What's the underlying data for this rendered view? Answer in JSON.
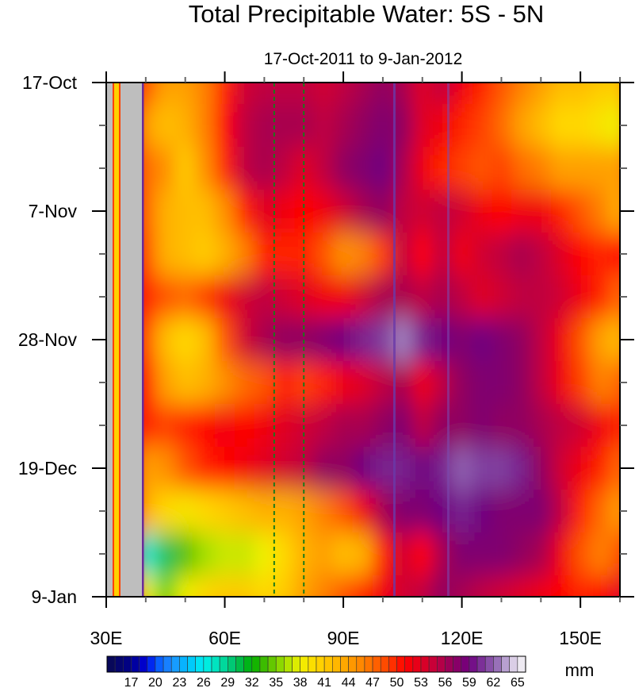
{
  "chart_data": {
    "type": "heatmap",
    "title": "Total Precipitable Water: 5S - 5N",
    "subtitle": "17-Oct-2011 to 9-Jan-2012",
    "xlabel": "",
    "ylabel": "",
    "units_label": "mm",
    "xlim": [
      30,
      160
    ],
    "ylim_days": [
      0,
      84
    ],
    "x_ticks": [
      {
        "value": 30,
        "label": "30E"
      },
      {
        "value": 60,
        "label": "60E"
      },
      {
        "value": 90,
        "label": "90E"
      },
      {
        "value": 120,
        "label": "120E"
      },
      {
        "value": 150,
        "label": "150E"
      }
    ],
    "y_ticks": [
      {
        "day": 0,
        "label": "17-Oct"
      },
      {
        "day": 21,
        "label": "7-Nov"
      },
      {
        "day": 42,
        "label": "28-Nov"
      },
      {
        "day": 63,
        "label": "19-Dec"
      },
      {
        "day": 84,
        "label": "9-Jan"
      }
    ],
    "lon": [
      40,
      45,
      50,
      55,
      60,
      65,
      70,
      75,
      80,
      85,
      90,
      95,
      100,
      105,
      110,
      115,
      120,
      125,
      130,
      135,
      140,
      145,
      150,
      155,
      160
    ],
    "day": [
      0,
      7,
      14,
      21,
      28,
      35,
      42,
      49,
      56,
      63,
      70,
      77,
      84
    ],
    "values": [
      [
        48,
        44,
        44,
        46,
        50,
        54,
        55,
        55,
        55,
        54,
        55,
        56,
        57,
        56,
        53,
        55,
        52,
        50,
        48,
        46,
        44,
        42,
        42,
        41,
        41
      ],
      [
        44,
        42,
        43,
        46,
        51,
        55,
        56,
        56,
        56,
        55,
        56,
        57,
        58,
        57,
        53,
        52,
        50,
        49,
        47,
        44,
        42,
        40,
        40,
        39,
        38
      ],
      [
        47,
        45,
        41,
        45,
        50,
        55,
        56,
        55,
        53,
        55,
        57,
        58,
        59,
        56,
        52,
        50,
        49,
        48,
        49,
        47,
        46,
        44,
        44,
        44,
        44
      ],
      [
        47,
        43,
        42,
        42,
        45,
        50,
        53,
        52,
        51,
        52,
        54,
        56,
        57,
        55,
        54,
        55,
        54,
        52,
        51,
        52,
        52,
        50,
        48,
        46,
        43
      ],
      [
        48,
        43,
        42,
        41,
        43,
        46,
        50,
        50,
        50,
        48,
        45,
        46,
        49,
        55,
        51,
        55,
        52,
        54,
        55,
        56,
        55,
        53,
        51,
        50,
        51
      ],
      [
        50,
        48,
        47,
        49,
        52,
        54,
        55,
        54,
        53,
        52,
        52,
        54,
        56,
        56,
        55,
        56,
        55,
        53,
        54,
        55,
        55,
        54,
        52,
        50,
        47
      ],
      [
        48,
        42,
        40,
        42,
        48,
        54,
        56,
        57,
        57,
        58,
        59,
        60,
        61,
        63,
        60,
        59,
        58,
        59,
        58,
        57,
        55,
        52,
        48,
        44,
        42
      ],
      [
        50,
        44,
        42,
        43,
        45,
        47,
        48,
        50,
        49,
        50,
        52,
        53,
        55,
        56,
        52,
        55,
        57,
        58,
        58,
        57,
        55,
        52,
        49,
        46,
        47
      ],
      [
        50,
        49,
        50,
        51,
        52,
        51,
        52,
        53,
        54,
        55,
        56,
        56,
        57,
        58,
        55,
        57,
        57,
        58,
        57,
        57,
        56,
        55,
        54,
        52,
        50
      ],
      [
        44,
        45,
        48,
        50,
        51,
        52,
        53,
        54,
        55,
        57,
        57,
        59,
        60,
        60,
        59,
        60,
        62,
        61,
        61,
        60,
        57,
        54,
        52,
        50,
        47
      ],
      [
        43,
        40,
        39,
        40,
        41,
        42,
        43,
        43,
        44,
        46,
        48,
        52,
        56,
        58,
        58,
        59,
        60,
        59,
        58,
        58,
        58,
        55,
        50,
        47,
        44
      ],
      [
        27,
        30,
        34,
        36,
        37,
        37,
        38,
        40,
        43,
        44,
        42,
        43,
        50,
        54,
        51,
        56,
        58,
        58,
        58,
        57,
        56,
        52,
        48,
        46,
        48
      ],
      [
        38,
        35,
        38,
        40,
        41,
        41,
        40,
        41,
        44,
        46,
        48,
        50,
        52,
        54,
        55,
        57,
        56,
        55,
        54,
        53,
        52,
        51,
        50,
        51,
        53
      ]
    ],
    "land_mask_lon": [
      34.2,
      39.2
    ],
    "reference_lines_lon": [
      72.5,
      80
    ],
    "colorbar": {
      "min": 14,
      "max": 66,
      "step": 1,
      "labels": [
        "17",
        "20",
        "23",
        "26",
        "29",
        "32",
        "35",
        "38",
        "41",
        "44",
        "47",
        "50",
        "53",
        "56",
        "59",
        "62",
        "65"
      ]
    },
    "colors": {
      "land": "#bebebe",
      "reference_line": "#1a7a1a",
      "frame": "#000000"
    }
  }
}
